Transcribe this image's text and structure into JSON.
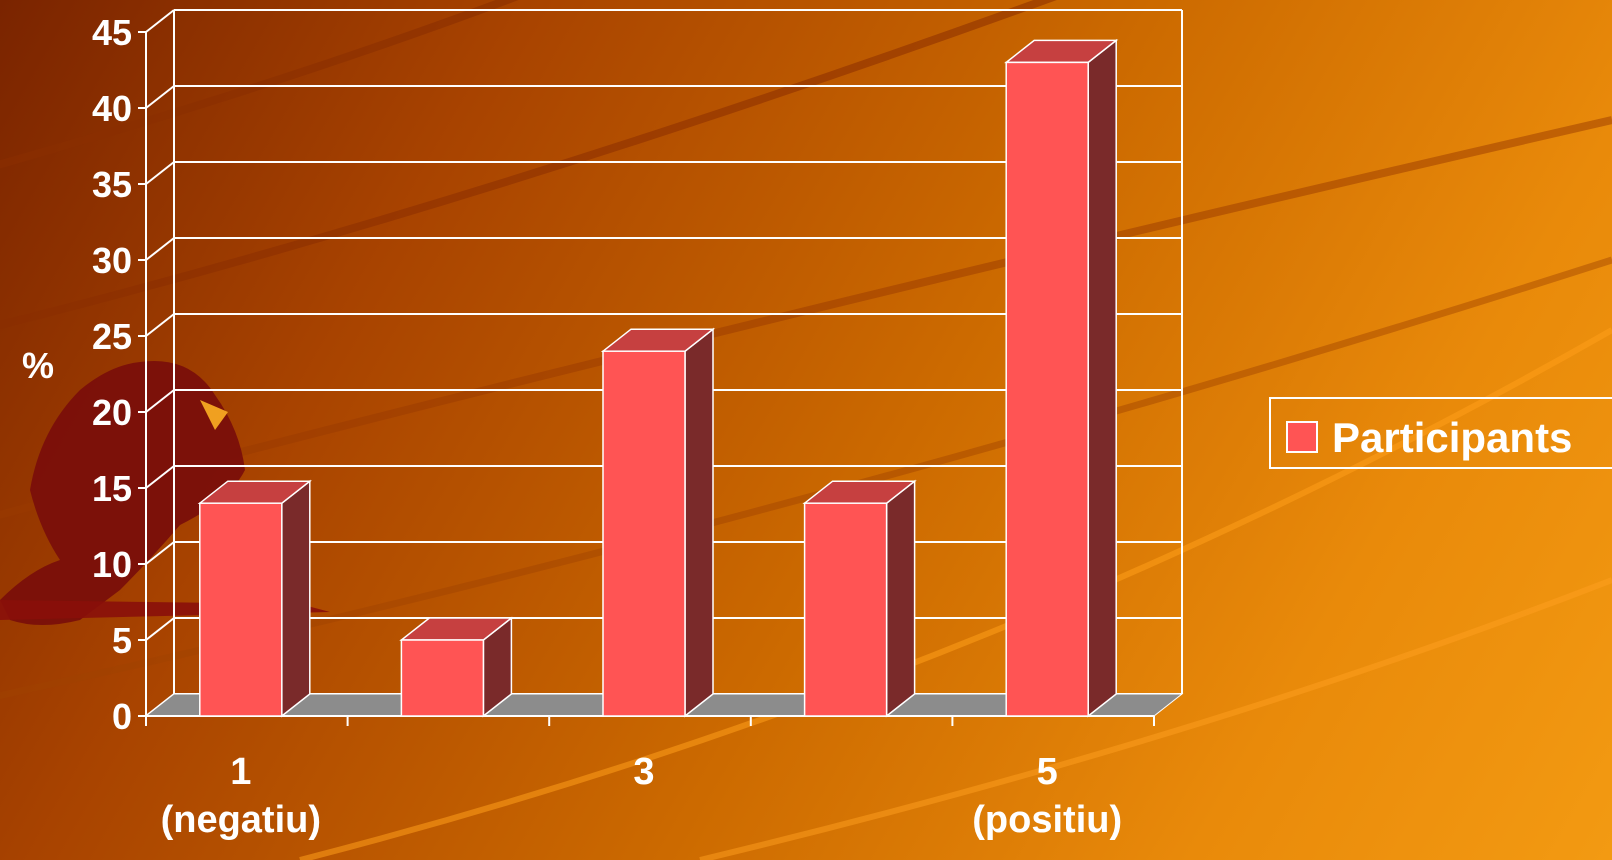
{
  "chart_data": {
    "type": "bar",
    "categories": [
      [
        "1",
        "(negatiu)"
      ],
      [
        ""
      ],
      [
        "3"
      ],
      [
        ""
      ],
      [
        "5",
        "(positiu)"
      ]
    ],
    "series": [
      {
        "name": "Participants",
        "values": [
          14,
          5,
          24,
          14,
          43
        ]
      }
    ],
    "ylabel": "%",
    "ylim": [
      0,
      45
    ],
    "yticks": [
      0,
      5,
      10,
      15,
      20,
      25,
      30,
      35,
      40,
      45
    ],
    "grid": true,
    "legend": "right",
    "colors": {
      "bar_front": "#ff5454",
      "bar_top": "#c64040",
      "bar_side": "#7a2a2a",
      "floor": "#8c8c8c",
      "grid": "#ffffff"
    }
  }
}
